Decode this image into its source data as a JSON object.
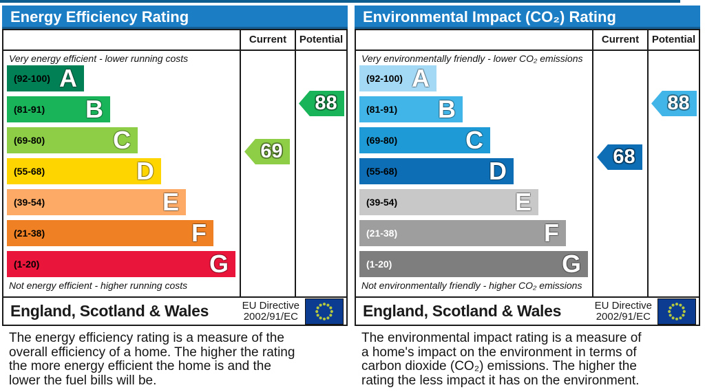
{
  "colors": {
    "header_blue": "#1b7ec5",
    "top_strip": "#0d5d90",
    "flag_blue": "#0b3c91",
    "flag_star": "#b5c83e"
  },
  "chart_data": [
    {
      "type": "bar",
      "title": "Energy Efficiency Rating",
      "categories": [
        "A",
        "B",
        "C",
        "D",
        "E",
        "F",
        "G"
      ],
      "band_ranges": [
        "92-100",
        "81-91",
        "69-80",
        "55-68",
        "39-54",
        "21-38",
        "1-20"
      ],
      "band_colors": [
        "#008054",
        "#19b459",
        "#8dce46",
        "#ffd500",
        "#fcaa65",
        "#ef8023",
        "#e9153b"
      ],
      "current": 69,
      "current_band": "C",
      "potential": 88,
      "potential_band": "B",
      "scale": [
        1,
        100
      ]
    },
    {
      "type": "bar",
      "title": "Environmental Impact (CO₂) Rating",
      "categories": [
        "A",
        "B",
        "C",
        "D",
        "E",
        "F",
        "G"
      ],
      "band_ranges": [
        "92-100",
        "81-91",
        "69-80",
        "55-68",
        "39-54",
        "21-38",
        "1-20"
      ],
      "band_colors": [
        "#a3d9f5",
        "#42b5e8",
        "#1e9ad6",
        "#0d6eb5",
        "#c8c8c8",
        "#9e9e9e",
        "#7e7e7e"
      ],
      "current": 68,
      "current_band": "D",
      "potential": 88,
      "potential_band": "B",
      "scale": [
        1,
        100
      ]
    }
  ],
  "panels": [
    {
      "title": "Energy Efficiency Rating",
      "columns": {
        "current": "Current",
        "potential": "Potential"
      },
      "top_caption": "Very energy efficient - lower running costs",
      "bottom_caption": "Not energy efficient - higher running costs",
      "bands": [
        {
          "letter": "A",
          "range": "(92-100)",
          "color": "#008054",
          "label_color": "#000000"
        },
        {
          "letter": "B",
          "range": "(81-91)",
          "color": "#19b459",
          "label_color": "#000000"
        },
        {
          "letter": "C",
          "range": "(69-80)",
          "color": "#8dce46",
          "label_color": "#000000"
        },
        {
          "letter": "D",
          "range": "(55-68)",
          "color": "#ffd500",
          "label_color": "#000000"
        },
        {
          "letter": "E",
          "range": "(39-54)",
          "color": "#fcaa65",
          "label_color": "#000000"
        },
        {
          "letter": "F",
          "range": "(21-38)",
          "color": "#ef8023",
          "label_color": "#000000"
        },
        {
          "letter": "G",
          "range": "(1-20)",
          "color": "#e9153b",
          "label_color": "#000000"
        }
      ],
      "current": {
        "value": "69",
        "color": "#8dce46"
      },
      "potential": {
        "value": "88",
        "color": "#19b459"
      },
      "footer": {
        "region": "England, Scotland & Wales",
        "directive_line1": "EU Directive",
        "directive_line2": "2002/91/EC"
      },
      "description": {
        "line1": "The energy efficiency rating is a measure of the",
        "line2": "overall efficiency of a home. The higher the rating",
        "line3": "the more energy efficient the home is and the",
        "line4": "lower the fuel bills will be."
      }
    },
    {
      "title": "Environmental Impact (CO₂) Rating",
      "columns": {
        "current": "Current",
        "potential": "Potential"
      },
      "top_caption": "Very environmentally friendly - lower CO₂ emissions",
      "bottom_caption": "Not environmentally friendly - higher CO₂ emissions",
      "bands": [
        {
          "letter": "A",
          "range": "(92-100)",
          "color": "#a3d9f5",
          "label_color": "#000000"
        },
        {
          "letter": "B",
          "range": "(81-91)",
          "color": "#42b5e8",
          "label_color": "#000000"
        },
        {
          "letter": "C",
          "range": "(69-80)",
          "color": "#1e9ad6",
          "label_color": "#000000"
        },
        {
          "letter": "D",
          "range": "(55-68)",
          "color": "#0d6eb5",
          "label_color": "#000000"
        },
        {
          "letter": "E",
          "range": "(39-54)",
          "color": "#c8c8c8",
          "label_color": "#000000"
        },
        {
          "letter": "F",
          "range": "(21-38)",
          "color": "#9e9e9e",
          "label_color": "#ffffff"
        },
        {
          "letter": "G",
          "range": "(1-20)",
          "color": "#7e7e7e",
          "label_color": "#ffffff"
        }
      ],
      "current": {
        "value": "68",
        "color": "#0d6eb5"
      },
      "potential": {
        "value": "88",
        "color": "#42b5e8"
      },
      "footer": {
        "region": "England, Scotland & Wales",
        "directive_line1": "EU Directive",
        "directive_line2": "2002/91/EC"
      },
      "description": {
        "line1": "The environmental impact rating is a measure of",
        "line2": "a home's impact on the environment in terms of",
        "line3": "carbon dioxide (CO₂) emissions. The higher the",
        "line4": "rating the less impact it has on the environment."
      }
    }
  ]
}
